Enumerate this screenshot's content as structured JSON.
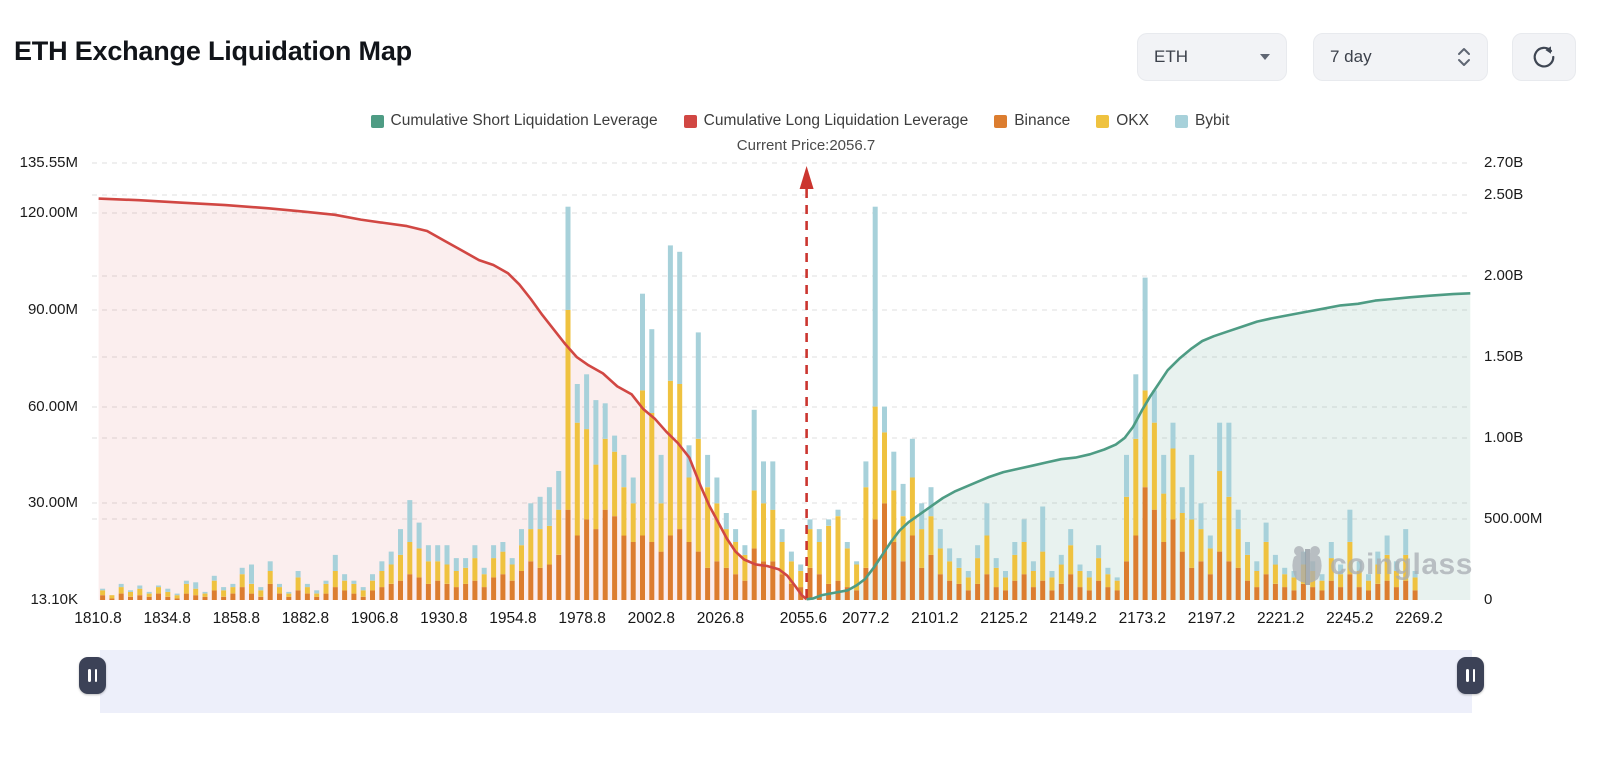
{
  "header": {
    "title": "ETH Exchange Liquidation Map"
  },
  "controls": {
    "coin_selected": "ETH",
    "range_selected": "7 day",
    "refresh_icon": "refresh-circular-arrow"
  },
  "legend": {
    "items": [
      {
        "label": "Cumulative Short Liquidation Leverage",
        "color": "#4e9c84"
      },
      {
        "label": "Cumulative Long Liquidation Leverage",
        "color": "#d14743"
      },
      {
        "label": "Binance",
        "color": "#dc7d2f"
      },
      {
        "label": "OKX",
        "color": "#efc23f"
      },
      {
        "label": "Bybit",
        "color": "#a7d1da"
      }
    ]
  },
  "watermark": {
    "text": "coinglass"
  },
  "chart_data": {
    "type": "bar",
    "subtype": "stacked-bars-with-cumulative-lines",
    "title": "ETH Exchange Liquidation Map",
    "current_price": 2056.7,
    "current_price_label": "Current Price:2056.7",
    "grid": true,
    "legend_position": "top-center",
    "x": {
      "min": 1810.8,
      "max": 2269.2,
      "tick_values": [
        1810.8,
        1834.8,
        1858.8,
        1882.8,
        1906.8,
        1930.8,
        1954.8,
        1978.8,
        2002.8,
        2026.8,
        2055.6,
        2077.2,
        2101.2,
        2125.2,
        2149.2,
        2173.2,
        2197.2,
        2221.2,
        2245.2,
        2269.2
      ],
      "tick_labels": [
        "1810.8",
        "1834.8",
        "1858.8",
        "1882.8",
        "1906.8",
        "1930.8",
        "1954.8",
        "1978.8",
        "2002.8",
        "2026.8",
        "2055.6",
        "2077.2",
        "2101.2",
        "2125.2",
        "2149.2",
        "2173.2",
        "2197.2",
        "2221.2",
        "2245.2",
        "2269.2"
      ]
    },
    "y_left": {
      "unit": "M",
      "min": 0,
      "max": 135.55,
      "ticks": [
        {
          "value": 0.0131,
          "label": "13.10K"
        },
        {
          "value": 30,
          "label": "30.00M"
        },
        {
          "value": 60,
          "label": "60.00M"
        },
        {
          "value": 90,
          "label": "90.00M"
        },
        {
          "value": 120,
          "label": "120.00M"
        },
        {
          "value": 135.55,
          "label": "135.55M"
        }
      ]
    },
    "y_right": {
      "unit": "B",
      "min": 0,
      "max": 2.7,
      "ticks": [
        {
          "value": 0,
          "label": "0"
        },
        {
          "value": 0.5,
          "label": "500.00M"
        },
        {
          "value": 1,
          "label": "1.00B"
        },
        {
          "value": 1.5,
          "label": "1.50B"
        },
        {
          "value": 2,
          "label": "2.00B"
        },
        {
          "value": 2.5,
          "label": "2.50B"
        },
        {
          "value": 2.7,
          "label": "2.70B"
        }
      ]
    },
    "bars": {
      "axis": "left",
      "unit": "M",
      "start_price": 1812.4,
      "price_step": 3.23,
      "series_names": [
        "Binance",
        "OKX",
        "Bybit"
      ],
      "colors": {
        "Binance": "#dc7d2f",
        "OKX": "#efc23f",
        "Bybit": "#a7d1da"
      },
      "values": [
        [
          1.5,
          1.5,
          0.5
        ],
        [
          0.5,
          1,
          0
        ],
        [
          2,
          2,
          1
        ],
        [
          1,
          1.5,
          0.5
        ],
        [
          1.5,
          2,
          1
        ],
        [
          1,
          1,
          0.5
        ],
        [
          2,
          2,
          0.5
        ],
        [
          1,
          1.5,
          1
        ],
        [
          0.5,
          1,
          0.5
        ],
        [
          2,
          3,
          1
        ],
        [
          1.5,
          2,
          2
        ],
        [
          1,
          1,
          0.5
        ],
        [
          3,
          3,
          1.5
        ],
        [
          1,
          2,
          1
        ],
        [
          2,
          2,
          1
        ],
        [
          4,
          4,
          2
        ],
        [
          2,
          3,
          6
        ],
        [
          1,
          2,
          1
        ],
        [
          5,
          4,
          3
        ],
        [
          2,
          2,
          1
        ],
        [
          1,
          1,
          0.5
        ],
        [
          3,
          4,
          2
        ],
        [
          2,
          2,
          1
        ],
        [
          1,
          1,
          1
        ],
        [
          2,
          3,
          1
        ],
        [
          4,
          5,
          5
        ],
        [
          3,
          3,
          2
        ],
        [
          2,
          3,
          1
        ],
        [
          1,
          2,
          1
        ],
        [
          3,
          3,
          2
        ],
        [
          4,
          5,
          3
        ],
        [
          5,
          6,
          4
        ],
        [
          6,
          8,
          8
        ],
        [
          8,
          10,
          13
        ],
        [
          7,
          9,
          8
        ],
        [
          5,
          7,
          5
        ],
        [
          6,
          6,
          5
        ],
        [
          5,
          6,
          6
        ],
        [
          4,
          5,
          4
        ],
        [
          5,
          5,
          3
        ],
        [
          6,
          7,
          4
        ],
        [
          4,
          4,
          2
        ],
        [
          7,
          6,
          4
        ],
        [
          8,
          7,
          3
        ],
        [
          6,
          5,
          2
        ],
        [
          9,
          8,
          5
        ],
        [
          12,
          10,
          8
        ],
        [
          10,
          12,
          10
        ],
        [
          11,
          12,
          12
        ],
        [
          14,
          14,
          12
        ],
        [
          28,
          62,
          32
        ],
        [
          20,
          35,
          12
        ],
        [
          25,
          28,
          17
        ],
        [
          22,
          20,
          20
        ],
        [
          28,
          22,
          11
        ],
        [
          26,
          20,
          5
        ],
        [
          20,
          15,
          10
        ],
        [
          18,
          12,
          8
        ],
        [
          20,
          45,
          30
        ],
        [
          18,
          40,
          26
        ],
        [
          15,
          15,
          15
        ],
        [
          20,
          48,
          42
        ],
        [
          22,
          45,
          41
        ],
        [
          18,
          20,
          10
        ],
        [
          15,
          35,
          33
        ],
        [
          10,
          25,
          10
        ],
        [
          12,
          18,
          8
        ],
        [
          10,
          12,
          5
        ],
        [
          8,
          10,
          4
        ],
        [
          6,
          8,
          3
        ],
        [
          16,
          18,
          25
        ],
        [
          12,
          18,
          13
        ],
        [
          12,
          16,
          15
        ],
        [
          8,
          10,
          4
        ],
        [
          5,
          7,
          3
        ],
        [
          4,
          5,
          2
        ],
        [
          10,
          12,
          3
        ],
        [
          8,
          10,
          4
        ],
        [
          5,
          18,
          2
        ],
        [
          6,
          20,
          2
        ],
        [
          4,
          12,
          2
        ],
        [
          3,
          8,
          1
        ],
        [
          10,
          25,
          8
        ],
        [
          25,
          35,
          62
        ],
        [
          30,
          22,
          8
        ],
        [
          18,
          16,
          12
        ],
        [
          12,
          14,
          10
        ],
        [
          20,
          18,
          12
        ],
        [
          10,
          12,
          8
        ],
        [
          14,
          12,
          9
        ],
        [
          8,
          8,
          6
        ],
        [
          6,
          6,
          4
        ],
        [
          5,
          5,
          3
        ],
        [
          3,
          4,
          2
        ],
        [
          5,
          8,
          4
        ],
        [
          8,
          12,
          10
        ],
        [
          4,
          6,
          3
        ],
        [
          3,
          4,
          2
        ],
        [
          6,
          8,
          4
        ],
        [
          8,
          10,
          7
        ],
        [
          4,
          5,
          3
        ],
        [
          6,
          9,
          14
        ],
        [
          3,
          4,
          2
        ],
        [
          5,
          6,
          3
        ],
        [
          8,
          9,
          5
        ],
        [
          4,
          5,
          2
        ],
        [
          3,
          4,
          2
        ],
        [
          6,
          7,
          4
        ],
        [
          4,
          4,
          2
        ],
        [
          3,
          3,
          1
        ],
        [
          12,
          20,
          13
        ],
        [
          20,
          30,
          20
        ],
        [
          35,
          30,
          35
        ],
        [
          28,
          27,
          10
        ],
        [
          18,
          15,
          12
        ],
        [
          25,
          22,
          8
        ],
        [
          15,
          12,
          8
        ],
        [
          10,
          15,
          20
        ],
        [
          12,
          10,
          8
        ],
        [
          8,
          8,
          4
        ],
        [
          15,
          25,
          15
        ],
        [
          12,
          20,
          23
        ],
        [
          10,
          12,
          6
        ],
        [
          6,
          8,
          4
        ],
        [
          4,
          5,
          3
        ],
        [
          8,
          10,
          6
        ],
        [
          5,
          6,
          3
        ],
        [
          4,
          4,
          2
        ],
        [
          3,
          4,
          2
        ],
        [
          5,
          6,
          4
        ],
        [
          4,
          5,
          3
        ],
        [
          3,
          3,
          2
        ],
        [
          6,
          7,
          5
        ],
        [
          4,
          4,
          3
        ],
        [
          8,
          10,
          10
        ],
        [
          4,
          5,
          3
        ],
        [
          3,
          3,
          2
        ],
        [
          5,
          6,
          4
        ],
        [
          6,
          8,
          6
        ],
        [
          4,
          5,
          3
        ],
        [
          6,
          8,
          8
        ],
        [
          3,
          4,
          2
        ]
      ]
    },
    "lines": {
      "long": {
        "name": "Cumulative Long Liquidation Leverage",
        "axis": "right",
        "unit": "B",
        "color": "#d14743",
        "fill": "rgba(209,71,67,0.09)",
        "points": [
          [
            1811,
            2.48
          ],
          [
            1825,
            2.47
          ],
          [
            1840,
            2.455
          ],
          [
            1855,
            2.44
          ],
          [
            1870,
            2.42
          ],
          [
            1882,
            2.4
          ],
          [
            1893,
            2.38
          ],
          [
            1902,
            2.35
          ],
          [
            1910,
            2.33
          ],
          [
            1918,
            2.31
          ],
          [
            1925,
            2.28
          ],
          [
            1931,
            2.22
          ],
          [
            1937,
            2.16
          ],
          [
            1943,
            2.1
          ],
          [
            1948,
            2.07
          ],
          [
            1953,
            2.02
          ],
          [
            1957,
            1.95
          ],
          [
            1961,
            1.86
          ],
          [
            1965,
            1.76
          ],
          [
            1969,
            1.67
          ],
          [
            1973,
            1.58
          ],
          [
            1977,
            1.5
          ],
          [
            1981,
            1.45
          ],
          [
            1986,
            1.4
          ],
          [
            1991,
            1.32
          ],
          [
            1996,
            1.27
          ],
          [
            2000,
            1.18
          ],
          [
            2004,
            1.12
          ],
          [
            2008,
            1.04
          ],
          [
            2012,
            0.97
          ],
          [
            2016,
            0.88
          ],
          [
            2020,
            0.7
          ],
          [
            2023,
            0.58
          ],
          [
            2026,
            0.48
          ],
          [
            2029,
            0.38
          ],
          [
            2032,
            0.3
          ],
          [
            2035,
            0.25
          ],
          [
            2039,
            0.22
          ],
          [
            2043,
            0.21
          ],
          [
            2047,
            0.19
          ],
          [
            2050,
            0.15
          ],
          [
            2053,
            0.08
          ],
          [
            2055,
            0.03
          ],
          [
            2056.7,
            0.005
          ]
        ]
      },
      "short": {
        "name": "Cumulative Short Liquidation Leverage",
        "axis": "right",
        "unit": "B",
        "color": "#4e9c84",
        "fill": "rgba(78,156,132,0.13)",
        "points": [
          [
            2056.7,
            0.005
          ],
          [
            2059,
            0.01
          ],
          [
            2062,
            0.03
          ],
          [
            2065,
            0.04
          ],
          [
            2068,
            0.05
          ],
          [
            2071,
            0.06
          ],
          [
            2074,
            0.09
          ],
          [
            2077,
            0.13
          ],
          [
            2080,
            0.2
          ],
          [
            2083,
            0.28
          ],
          [
            2086,
            0.36
          ],
          [
            2089,
            0.43
          ],
          [
            2092,
            0.48
          ],
          [
            2096,
            0.53
          ],
          [
            2100,
            0.58
          ],
          [
            2104,
            0.63
          ],
          [
            2108,
            0.67
          ],
          [
            2112,
            0.7
          ],
          [
            2116,
            0.73
          ],
          [
            2120,
            0.76
          ],
          [
            2125,
            0.79
          ],
          [
            2130,
            0.81
          ],
          [
            2135,
            0.83
          ],
          [
            2140,
            0.85
          ],
          [
            2145,
            0.87
          ],
          [
            2150,
            0.88
          ],
          [
            2155,
            0.9
          ],
          [
            2160,
            0.93
          ],
          [
            2164,
            0.96
          ],
          [
            2167,
            1.0
          ],
          [
            2170,
            1.07
          ],
          [
            2173,
            1.17
          ],
          [
            2176,
            1.26
          ],
          [
            2179,
            1.34
          ],
          [
            2182,
            1.42
          ],
          [
            2186,
            1.49
          ],
          [
            2190,
            1.55
          ],
          [
            2194,
            1.6
          ],
          [
            2198,
            1.63
          ],
          [
            2203,
            1.66
          ],
          [
            2208,
            1.69
          ],
          [
            2213,
            1.72
          ],
          [
            2218,
            1.74
          ],
          [
            2224,
            1.76
          ],
          [
            2230,
            1.78
          ],
          [
            2236,
            1.8
          ],
          [
            2242,
            1.82
          ],
          [
            2248,
            1.83
          ],
          [
            2254,
            1.85
          ],
          [
            2260,
            1.86
          ],
          [
            2266,
            1.87
          ],
          [
            2273,
            1.88
          ],
          [
            2281,
            1.89
          ],
          [
            2287,
            1.895
          ]
        ]
      }
    }
  }
}
